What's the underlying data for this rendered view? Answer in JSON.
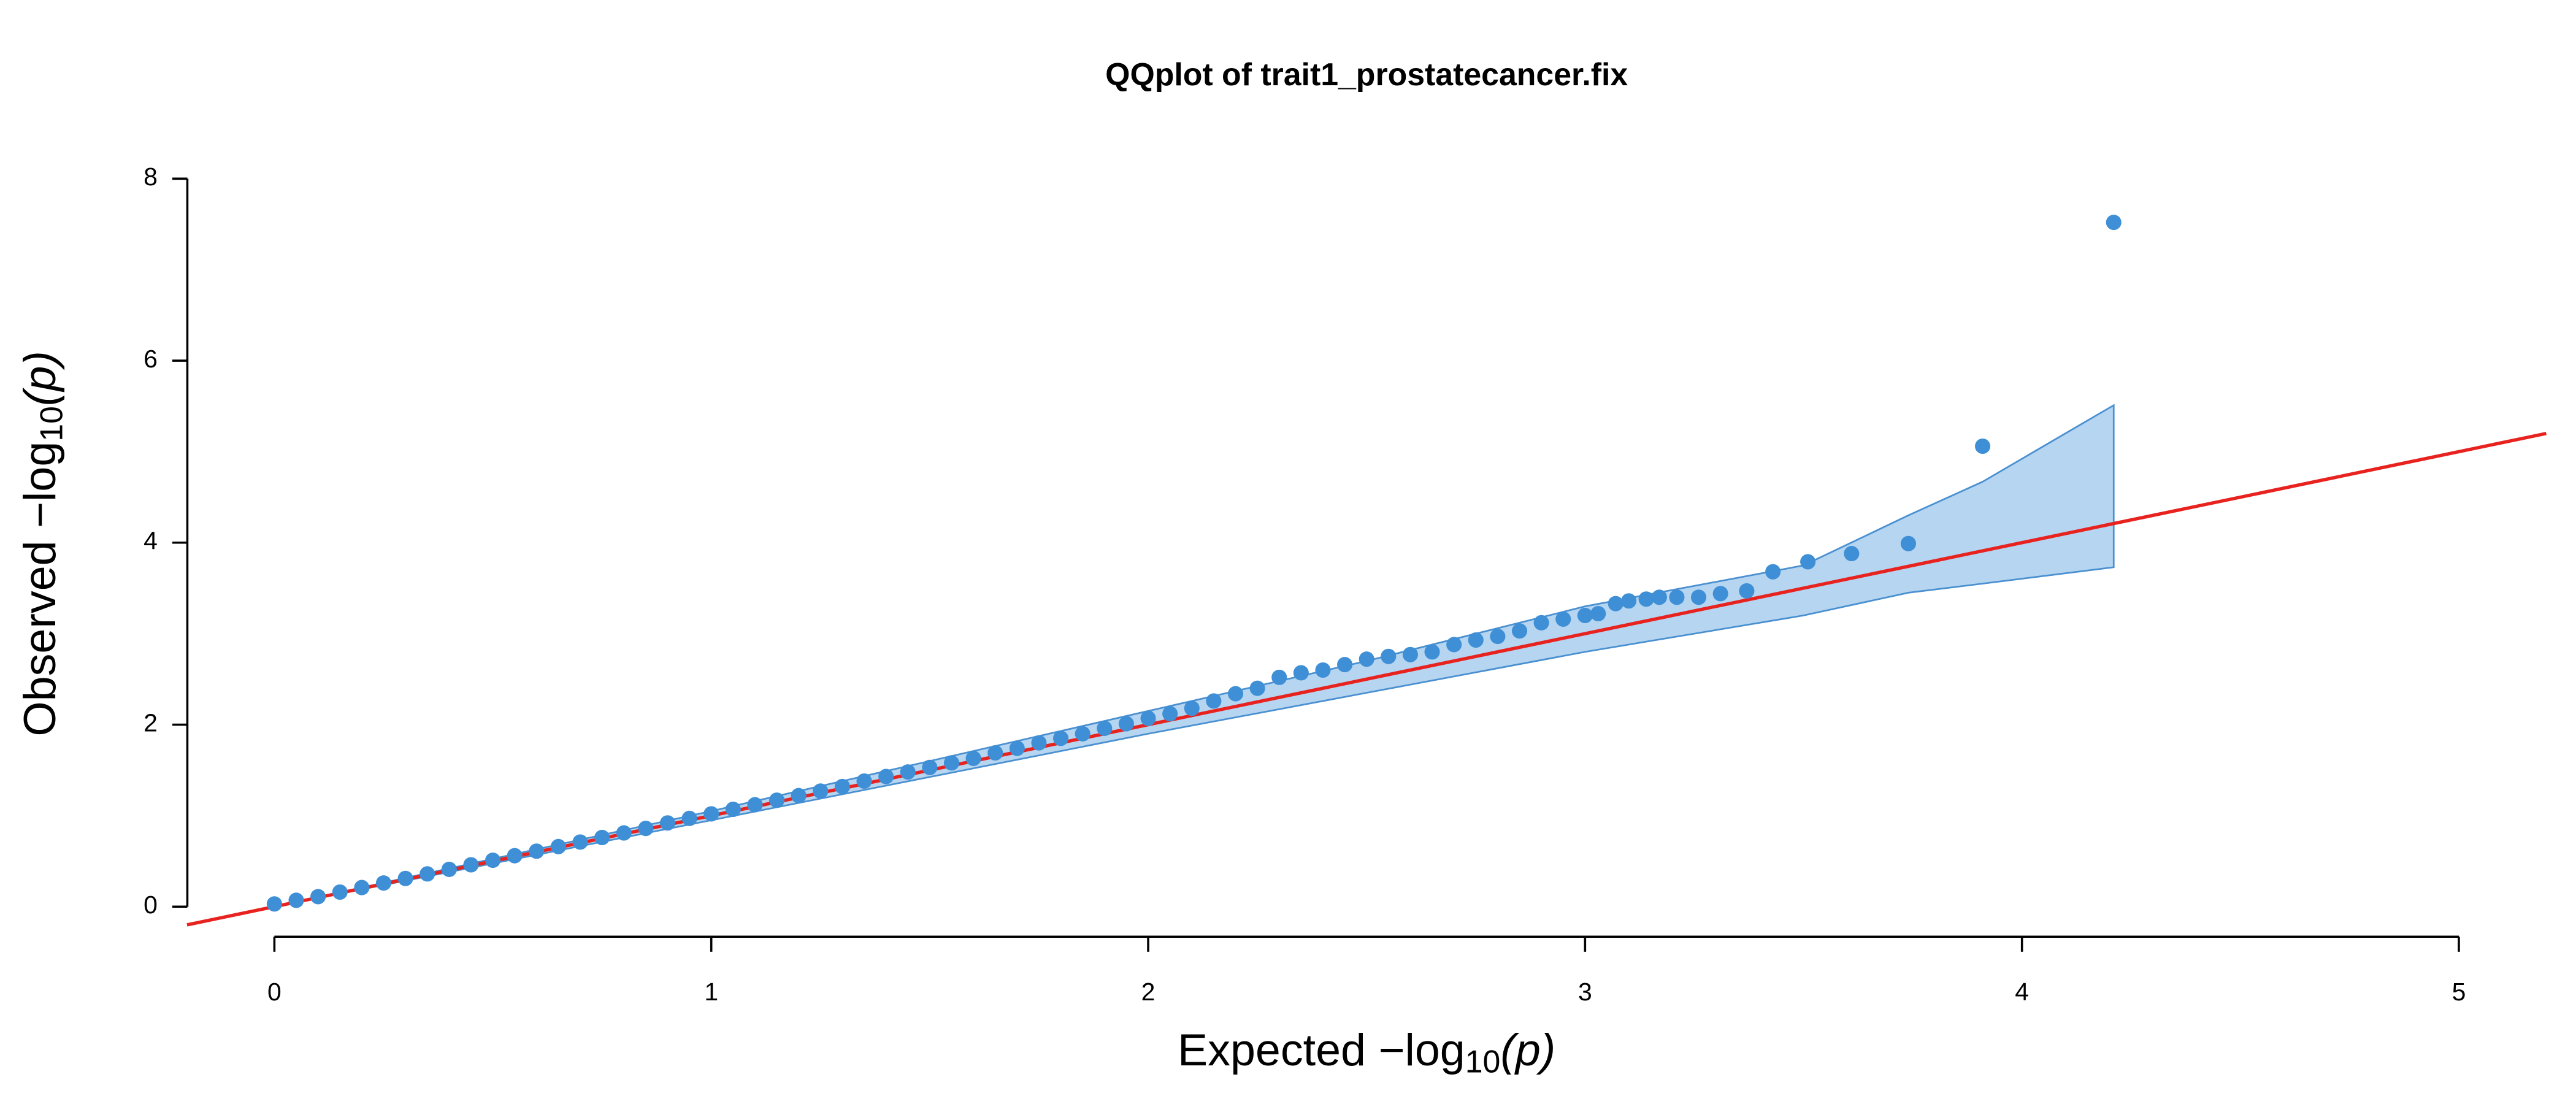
{
  "chart_data": {
    "type": "scatter",
    "title": "QQplot of trait1_prostatecancer.fix",
    "x_label": {
      "main": "Expected  −log",
      "sub": "10",
      "arg": "(p)"
    },
    "y_label": {
      "main": "Observed  −log",
      "sub": "10",
      "arg": "(p)"
    },
    "xlim": [
      -0.2,
      5.2
    ],
    "ylim": [
      -0.2,
      8.3
    ],
    "xticks": [
      0,
      1,
      2,
      3,
      4,
      5
    ],
    "yticks": [
      0,
      2,
      4,
      6,
      8
    ],
    "grid": false,
    "series": [
      {
        "color": "#3f8fd6",
        "x": [
          0.0,
          0.05,
          0.1,
          0.15,
          0.2,
          0.25,
          0.3,
          0.35,
          0.4,
          0.45,
          0.5,
          0.55,
          0.6,
          0.65,
          0.7,
          0.75,
          0.8,
          0.85,
          0.9,
          0.95,
          1.0,
          1.05,
          1.1,
          1.15,
          1.2,
          1.25,
          1.3,
          1.35,
          1.4,
          1.45,
          1.5,
          1.55,
          1.6,
          1.65,
          1.7,
          1.75,
          1.8,
          1.85,
          1.9,
          1.95,
          2.0,
          2.05,
          2.1,
          2.15,
          2.2,
          2.25,
          2.3,
          2.35,
          2.4,
          2.45,
          2.5,
          2.55,
          2.6,
          2.65,
          2.7,
          2.75,
          2.8,
          2.85,
          2.9,
          2.95,
          3.0,
          3.03,
          3.07,
          3.1,
          3.14,
          3.17,
          3.21,
          3.26,
          3.31,
          3.37,
          3.43,
          3.51,
          3.61,
          3.74,
          3.91,
          4.21
        ],
        "y": [
          0.03,
          0.07,
          0.11,
          0.16,
          0.21,
          0.26,
          0.31,
          0.36,
          0.41,
          0.46,
          0.51,
          0.56,
          0.61,
          0.66,
          0.71,
          0.76,
          0.81,
          0.86,
          0.92,
          0.97,
          1.02,
          1.07,
          1.12,
          1.17,
          1.22,
          1.27,
          1.32,
          1.38,
          1.43,
          1.48,
          1.53,
          1.58,
          1.63,
          1.69,
          1.74,
          1.8,
          1.85,
          1.9,
          1.96,
          2.01,
          2.07,
          2.12,
          2.18,
          2.26,
          2.34,
          2.4,
          2.52,
          2.57,
          2.6,
          2.66,
          2.72,
          2.75,
          2.77,
          2.8,
          2.88,
          2.93,
          2.97,
          3.03,
          3.12,
          3.16,
          3.2,
          3.22,
          3.33,
          3.36,
          3.38,
          3.4,
          3.4,
          3.4,
          3.44,
          3.47,
          3.68,
          3.79,
          3.88,
          3.99,
          5.06,
          7.52
        ]
      }
    ],
    "band": {
      "fill": "#b5d5f1",
      "stroke": "#4a90d0",
      "x": [
        0,
        1,
        2,
        2.5,
        3,
        3.5,
        3.74,
        3.91,
        4.21
      ],
      "upper": [
        0,
        1.05,
        2.15,
        2.7,
        3.3,
        3.75,
        4.3,
        4.67,
        5.51
      ],
      "lower": [
        0,
        0.95,
        1.9,
        2.35,
        2.8,
        3.2,
        3.45,
        3.55,
        3.73
      ]
    },
    "reference_line": {
      "slope": 1,
      "intercept": 0,
      "color": "#e8231f"
    }
  }
}
